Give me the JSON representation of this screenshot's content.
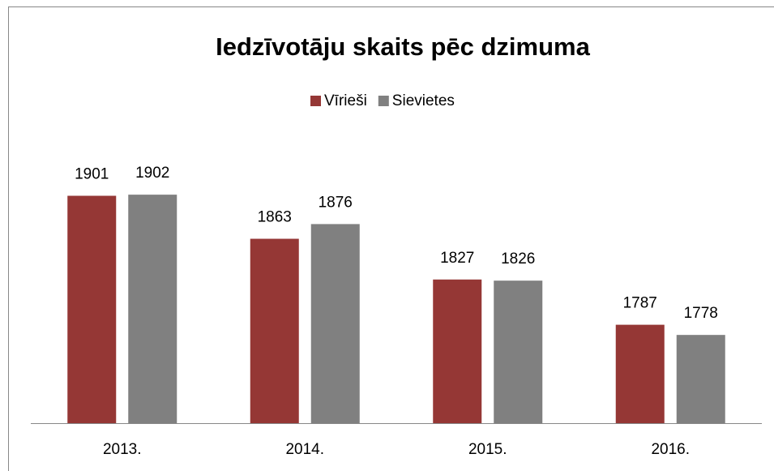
{
  "chart_data": {
    "type": "bar",
    "title": "Iedzīvotāju skaits pēc dzimuma",
    "categories": [
      "2013.",
      "2014.",
      "2015.",
      "2016."
    ],
    "series": [
      {
        "name": "Vīrieši",
        "color": "#953735",
        "values": [
          1901,
          1863,
          1827,
          1787
        ]
      },
      {
        "name": "Sievietes",
        "color": "#808080",
        "values": [
          1902,
          1876,
          1826,
          1778
        ]
      }
    ],
    "ylim": [
      1700,
      1920
    ],
    "legend": "top"
  }
}
